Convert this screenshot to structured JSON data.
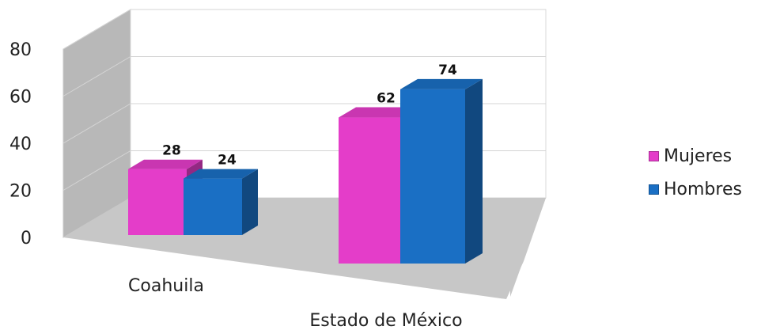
{
  "chart_data": {
    "type": "bar",
    "title": "",
    "xlabel": "",
    "ylabel": "",
    "categories": [
      "Coahuila",
      "Estado de México"
    ],
    "series": [
      {
        "name": "Mujeres",
        "values": [
          28,
          62
        ],
        "color": "#e43dc9"
      },
      {
        "name": "Hombres",
        "values": [
          24,
          74
        ],
        "color": "#1a6fc4"
      }
    ],
    "ylim": [
      0,
      80
    ],
    "yticks": [
      "0",
      "20",
      "40",
      "60",
      "80"
    ],
    "data_labels": [
      [
        "28",
        "62"
      ],
      [
        "24",
        "74"
      ]
    ],
    "grid": true,
    "legend_position": "right",
    "style": "3d-clustered-column"
  }
}
